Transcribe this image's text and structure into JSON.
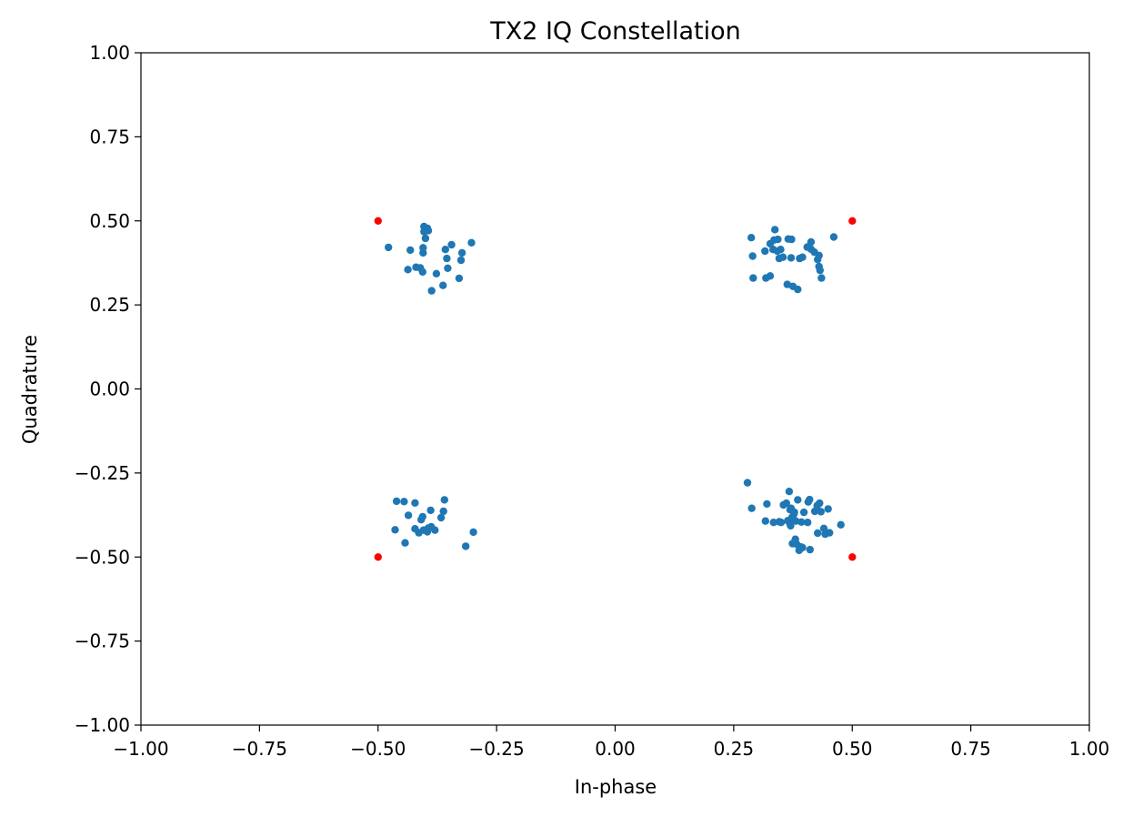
{
  "chart_data": {
    "type": "scatter",
    "title": "TX2 IQ Constellation",
    "xlabel": "In-phase",
    "ylabel": "Quadrature",
    "xlim": [
      -1.0,
      1.0
    ],
    "ylim": [
      -1.0,
      1.0
    ],
    "x_ticks": [
      "−1.00",
      "−0.75",
      "−0.50",
      "−0.25",
      "0.00",
      "0.25",
      "0.50",
      "0.75",
      "1.00"
    ],
    "y_ticks": [
      "−1.00",
      "−0.75",
      "−0.50",
      "−0.25",
      "0.00",
      "0.25",
      "0.50",
      "0.75",
      "1.00"
    ],
    "grid": false,
    "legend": false,
    "series": [
      {
        "color": "#1f77b4",
        "marker": "circle",
        "points": [
          [
            -0.478,
            0.421
          ],
          [
            -0.432,
            0.413
          ],
          [
            -0.437,
            0.355
          ],
          [
            -0.42,
            0.362
          ],
          [
            -0.411,
            0.36
          ],
          [
            -0.406,
            0.348
          ],
          [
            -0.405,
            0.405
          ],
          [
            -0.405,
            0.42
          ],
          [
            -0.403,
            0.468
          ],
          [
            -0.403,
            0.483
          ],
          [
            -0.396,
            0.478
          ],
          [
            -0.394,
            0.471
          ],
          [
            -0.4,
            0.448
          ],
          [
            -0.387,
            0.292
          ],
          [
            -0.377,
            0.343
          ],
          [
            -0.363,
            0.308
          ],
          [
            -0.358,
            0.415
          ],
          [
            -0.355,
            0.388
          ],
          [
            -0.353,
            0.359
          ],
          [
            -0.345,
            0.429
          ],
          [
            -0.329,
            0.329
          ],
          [
            -0.325,
            0.383
          ],
          [
            -0.323,
            0.405
          ],
          [
            -0.303,
            0.435
          ],
          [
            0.287,
            0.45
          ],
          [
            0.29,
            0.395
          ],
          [
            0.291,
            0.33
          ],
          [
            0.316,
            0.41
          ],
          [
            0.318,
            0.33
          ],
          [
            0.327,
            0.336
          ],
          [
            0.327,
            0.432
          ],
          [
            0.333,
            0.415
          ],
          [
            0.335,
            0.443
          ],
          [
            0.337,
            0.474
          ],
          [
            0.342,
            0.41
          ],
          [
            0.343,
            0.445
          ],
          [
            0.346,
            0.388
          ],
          [
            0.349,
            0.415
          ],
          [
            0.354,
            0.392
          ],
          [
            0.363,
            0.311
          ],
          [
            0.365,
            0.446
          ],
          [
            0.371,
            0.39
          ],
          [
            0.372,
            0.445
          ],
          [
            0.375,
            0.305
          ],
          [
            0.385,
            0.296
          ],
          [
            0.389,
            0.388
          ],
          [
            0.395,
            0.392
          ],
          [
            0.405,
            0.422
          ],
          [
            0.413,
            0.416
          ],
          [
            0.413,
            0.437
          ],
          [
            0.42,
            0.407
          ],
          [
            0.427,
            0.385
          ],
          [
            0.43,
            0.364
          ],
          [
            0.432,
            0.353
          ],
          [
            0.43,
            0.397
          ],
          [
            0.435,
            0.33
          ],
          [
            0.461,
            0.452
          ],
          [
            -0.461,
            -0.334
          ],
          [
            -0.464,
            -0.419
          ],
          [
            -0.445,
            -0.335
          ],
          [
            -0.443,
            -0.458
          ],
          [
            -0.436,
            -0.376
          ],
          [
            -0.422,
            -0.339
          ],
          [
            -0.422,
            -0.416
          ],
          [
            -0.414,
            -0.428
          ],
          [
            -0.409,
            -0.389
          ],
          [
            -0.406,
            -0.38
          ],
          [
            -0.404,
            -0.42
          ],
          [
            -0.396,
            -0.425
          ],
          [
            -0.394,
            -0.414
          ],
          [
            -0.389,
            -0.361
          ],
          [
            -0.388,
            -0.41
          ],
          [
            -0.38,
            -0.42
          ],
          [
            -0.367,
            -0.383
          ],
          [
            -0.362,
            -0.364
          ],
          [
            -0.36,
            -0.33
          ],
          [
            -0.315,
            -0.468
          ],
          [
            -0.299,
            -0.426
          ],
          [
            0.279,
            -0.279
          ],
          [
            0.288,
            -0.355
          ],
          [
            0.317,
            -0.393
          ],
          [
            0.32,
            -0.342
          ],
          [
            0.334,
            -0.397
          ],
          [
            0.346,
            -0.395
          ],
          [
            0.35,
            -0.397
          ],
          [
            0.355,
            -0.345
          ],
          [
            0.361,
            -0.34
          ],
          [
            0.364,
            -0.392
          ],
          [
            0.367,
            -0.305
          ],
          [
            0.369,
            -0.402
          ],
          [
            0.369,
            -0.359
          ],
          [
            0.37,
            -0.407
          ],
          [
            0.371,
            -0.355
          ],
          [
            0.373,
            -0.382
          ],
          [
            0.374,
            -0.46
          ],
          [
            0.377,
            -0.372
          ],
          [
            0.378,
            -0.367
          ],
          [
            0.38,
            -0.447
          ],
          [
            0.381,
            -0.393
          ],
          [
            0.383,
            -0.462
          ],
          [
            0.385,
            -0.33
          ],
          [
            0.388,
            -0.48
          ],
          [
            0.392,
            -0.47
          ],
          [
            0.393,
            -0.396
          ],
          [
            0.395,
            -0.472
          ],
          [
            0.398,
            -0.367
          ],
          [
            0.406,
            -0.397
          ],
          [
            0.407,
            -0.336
          ],
          [
            0.41,
            -0.329
          ],
          [
            0.411,
            -0.478
          ],
          [
            0.421,
            -0.364
          ],
          [
            0.426,
            -0.347
          ],
          [
            0.427,
            -0.429
          ],
          [
            0.431,
            -0.34
          ],
          [
            0.434,
            -0.365
          ],
          [
            0.44,
            -0.415
          ],
          [
            0.443,
            -0.432
          ],
          [
            0.449,
            -0.357
          ],
          [
            0.452,
            -0.428
          ],
          [
            0.476,
            -0.404
          ]
        ]
      },
      {
        "color": "#ff0000",
        "marker": "circle",
        "points": [
          [
            -0.5,
            0.5
          ],
          [
            0.5,
            0.5
          ],
          [
            -0.5,
            -0.5
          ],
          [
            0.5,
            -0.5
          ]
        ]
      }
    ]
  }
}
